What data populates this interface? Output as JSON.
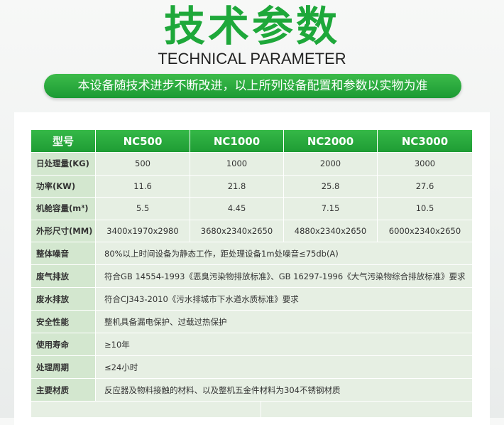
{
  "header": {
    "title": "技术参数",
    "subtitle": "TECHNICAL PARAMETER",
    "banner": "本设备随技术进步不断改进，以上所列设备配置和参数以实物为准"
  },
  "table": {
    "columns": [
      "型号",
      "NC500",
      "NC1000",
      "NC2000",
      "NC3000"
    ],
    "rows": [
      [
        "日处理量(KG)",
        "500",
        "1000",
        "2000",
        "3000"
      ],
      [
        "功率(KW)",
        "11.6",
        "21.8",
        "25.8",
        "27.6"
      ],
      [
        "机舱容量(m³)",
        "5.5",
        "4.45",
        "7.15",
        "10.5"
      ],
      [
        "外形尺寸(MM)",
        "3400x1970x2980",
        "3680x2340x2650",
        "4880x2340x2650",
        "6000x2340x2650"
      ]
    ],
    "notes": [
      [
        "整体噪音",
        "80%以上时间设备为静态工作，距处理设备1m处噪音≤75db(A)"
      ],
      [
        "废气排放",
        "符合GB 14554-1993《恶臭污染物排放标准》、GB 16297-1996《大气污染物综合排放标准》要求"
      ],
      [
        "废水排放",
        "符合CJ343-2010《污水排城市下水道水质标准》要求"
      ],
      [
        "安全性能",
        "整机具备漏电保护、过载过热保护"
      ],
      [
        "使用寿命",
        "≥10年"
      ],
      [
        "处理周期",
        "≤24小时"
      ],
      [
        "主要材质",
        "反应器及物料接触的材料、以及整机五金件材料为304不锈钢材质"
      ]
    ]
  }
}
